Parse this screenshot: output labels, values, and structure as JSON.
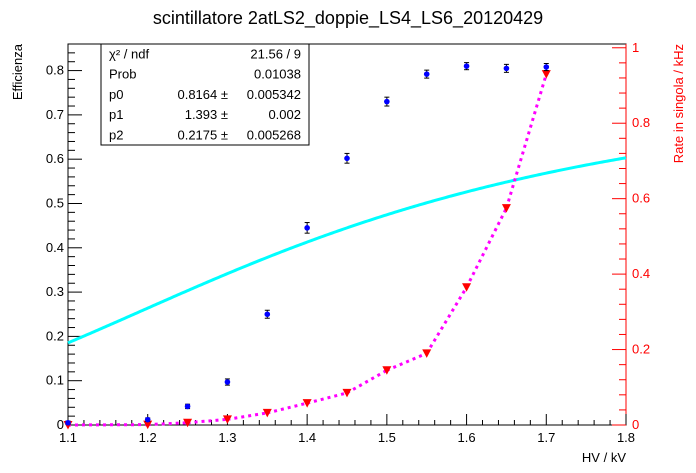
{
  "chart_data": {
    "type": "scatter",
    "title": "scintillatore 2atLS2_doppie_LS4_LS6_20120429",
    "xlabel": "HV / kV",
    "ylabel": "Efficienza",
    "y2label": "Rate in singola / kHz",
    "xlim": [
      1.1,
      1.8
    ],
    "ylim": [
      0,
      0.86
    ],
    "y2lim": [
      0,
      1.01
    ],
    "xticks": [
      "1.1",
      "1.2",
      "1.3",
      "1.4",
      "1.5",
      "1.6",
      "1.7",
      "1.8"
    ],
    "yticks": [
      "0",
      "0.1",
      "0.2",
      "0.3",
      "0.4",
      "0.5",
      "0.6",
      "0.7",
      "0.8"
    ],
    "y2ticks": [
      "0",
      "0.2",
      "0.4",
      "0.6",
      "0.8",
      "1"
    ],
    "series": [
      {
        "name": "Efficienza",
        "color": "#0000ff",
        "marker": "circle",
        "x": [
          1.1,
          1.2,
          1.25,
          1.3,
          1.35,
          1.4,
          1.45,
          1.5,
          1.55,
          1.6,
          1.65,
          1.7
        ],
        "y": [
          0.005,
          0.012,
          0.042,
          0.097,
          0.25,
          0.445,
          0.602,
          0.73,
          0.792,
          0.81,
          0.805,
          0.808
        ],
        "yerr": [
          0.004,
          0.004,
          0.005,
          0.007,
          0.009,
          0.012,
          0.011,
          0.01,
          0.009,
          0.008,
          0.009,
          0.008
        ]
      },
      {
        "name": "Rate in singola",
        "axis": "right",
        "color": "#ff0000",
        "line_color": "#ff00ff",
        "marker": "triangle-down",
        "x": [
          1.1,
          1.2,
          1.25,
          1.3,
          1.35,
          1.4,
          1.45,
          1.5,
          1.55,
          1.6,
          1.65,
          1.7
        ],
        "y": [
          0.0,
          0.001,
          0.006,
          0.015,
          0.032,
          0.058,
          0.085,
          0.145,
          0.19,
          0.365,
          0.575,
          0.93
        ]
      }
    ],
    "fit": {
      "function": "p0 / (1 + exp(-(x - p1) / (p2 * x)))",
      "color": "#00ffff",
      "p0": 0.8164,
      "p1": 1.393,
      "p2": 0.2175
    },
    "stats_box": {
      "rows": [
        {
          "label": "χ² / ndf",
          "value": "21.56 / 9",
          "err": ""
        },
        {
          "label": "Prob",
          "value": "0.01038",
          "err": ""
        },
        {
          "label": "p0",
          "value": "0.8164",
          "err": "0.005342"
        },
        {
          "label": "p1",
          "value": "1.393",
          "err": "0.002"
        },
        {
          "label": "p2",
          "value": "0.2175",
          "err": "0.005268"
        }
      ]
    }
  }
}
